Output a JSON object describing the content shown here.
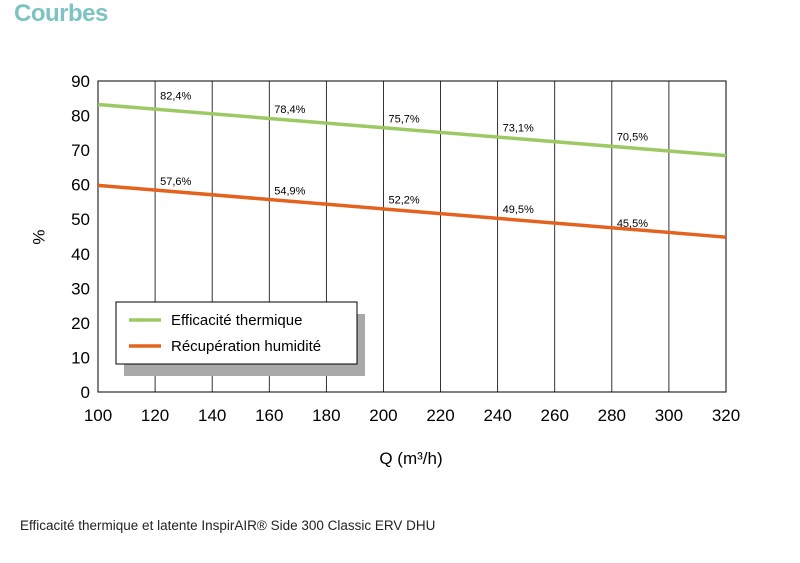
{
  "header": {
    "title": "Courbes"
  },
  "caption": "Efficacité thermique  et latente InspirAIR® Side 300 Classic ERV DHU",
  "colors": {
    "accent": "#7dc3c6",
    "thermique": "#9dc964",
    "humidite": "#e4621f"
  },
  "chart_data": {
    "type": "line",
    "title": "",
    "xlabel": "Q (m³/h)",
    "ylabel": "%",
    "xlim": [
      100,
      320
    ],
    "ylim": [
      0,
      90
    ],
    "x_ticks": [
      "100",
      "120",
      "140",
      "160",
      "180",
      "200",
      "220",
      "240",
      "260",
      "280",
      "300",
      "320"
    ],
    "y_ticks": [
      "0",
      "10",
      "20",
      "30",
      "40",
      "50",
      "60",
      "70",
      "80",
      "90"
    ],
    "grid": "vertical",
    "legend_position": "lower-left",
    "series": [
      {
        "name": "Efficacité thermique",
        "color": "#9dc964",
        "x": [
          100,
          320
        ],
        "y": [
          83.2,
          68.4
        ],
        "labels": [
          {
            "x": 120,
            "y": 82.4,
            "text": "82,4%"
          },
          {
            "x": 160,
            "y": 78.4,
            "text": "78,4%"
          },
          {
            "x": 200,
            "y": 75.7,
            "text": "75,7%"
          },
          {
            "x": 240,
            "y": 73.1,
            "text": "73,1%"
          },
          {
            "x": 280,
            "y": 70.5,
            "text": "70,5%"
          }
        ]
      },
      {
        "name": "Récupération humidité",
        "color": "#e4621f",
        "x": [
          100,
          320
        ],
        "y": [
          59.8,
          44.8
        ],
        "labels": [
          {
            "x": 120,
            "y": 57.6,
            "text": "57,6%"
          },
          {
            "x": 160,
            "y": 54.9,
            "text": "54,9%"
          },
          {
            "x": 200,
            "y": 52.2,
            "text": "52,2%"
          },
          {
            "x": 240,
            "y": 49.5,
            "text": "49,5%"
          },
          {
            "x": 280,
            "y": 45.5,
            "text": "45,5%"
          }
        ]
      }
    ]
  }
}
